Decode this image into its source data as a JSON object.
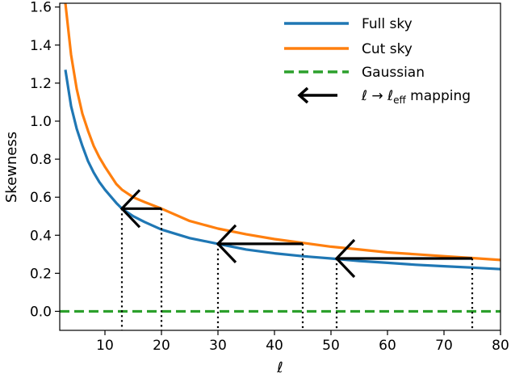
{
  "chart_data": {
    "type": "line",
    "xlabel": "ℓ",
    "ylabel": "Skewness",
    "xlim": [
      2,
      80
    ],
    "ylim": [
      -0.1,
      1.62
    ],
    "xticks": [
      10,
      20,
      30,
      40,
      50,
      60,
      70,
      80
    ],
    "yticks": [
      0.0,
      0.2,
      0.4,
      0.6,
      0.8,
      1.0,
      1.2,
      1.4,
      1.6
    ],
    "grid": false,
    "legend_position": "top-right",
    "series": [
      {
        "name": "Full sky",
        "color": "#1f77b4",
        "style": "solid",
        "x": [
          3,
          4,
          5,
          6,
          7,
          8,
          9,
          10,
          12,
          13,
          15,
          17,
          20,
          25,
          30,
          35,
          40,
          45,
          50,
          55,
          60,
          65,
          70,
          75,
          80
        ],
        "y": [
          1.27,
          1.08,
          0.96,
          0.87,
          0.79,
          0.73,
          0.68,
          0.64,
          0.57,
          0.54,
          0.5,
          0.47,
          0.43,
          0.385,
          0.355,
          0.325,
          0.305,
          0.29,
          0.278,
          0.265,
          0.255,
          0.245,
          0.237,
          0.23,
          0.222
        ]
      },
      {
        "name": "Cut sky",
        "color": "#ff7f0e",
        "style": "solid",
        "x": [
          3,
          4,
          5,
          6,
          7,
          8,
          9,
          10,
          12,
          13,
          15,
          17,
          20,
          25,
          30,
          35,
          40,
          45,
          50,
          55,
          60,
          65,
          70,
          75,
          80
        ],
        "y": [
          1.62,
          1.35,
          1.17,
          1.04,
          0.95,
          0.87,
          0.81,
          0.76,
          0.67,
          0.64,
          0.6,
          0.575,
          0.54,
          0.475,
          0.435,
          0.405,
          0.38,
          0.36,
          0.34,
          0.325,
          0.31,
          0.3,
          0.29,
          0.28,
          0.27
        ]
      },
      {
        "name": "Gaussian",
        "color": "#2ca02c",
        "style": "dashed",
        "x": [
          2,
          80
        ],
        "y": [
          0.0,
          0.0
        ]
      }
    ],
    "mappings": [
      {
        "from": 20,
        "to": 13,
        "y": 0.54
      },
      {
        "from": 45,
        "to": 30,
        "y": 0.355
      },
      {
        "from": 75,
        "to": 51,
        "y": 0.278
      }
    ],
    "mapping_legend": {
      "color": "#000000",
      "label_main": "ℓ → ℓ",
      "label_sub": "eff",
      "label_tail": " mapping"
    }
  }
}
